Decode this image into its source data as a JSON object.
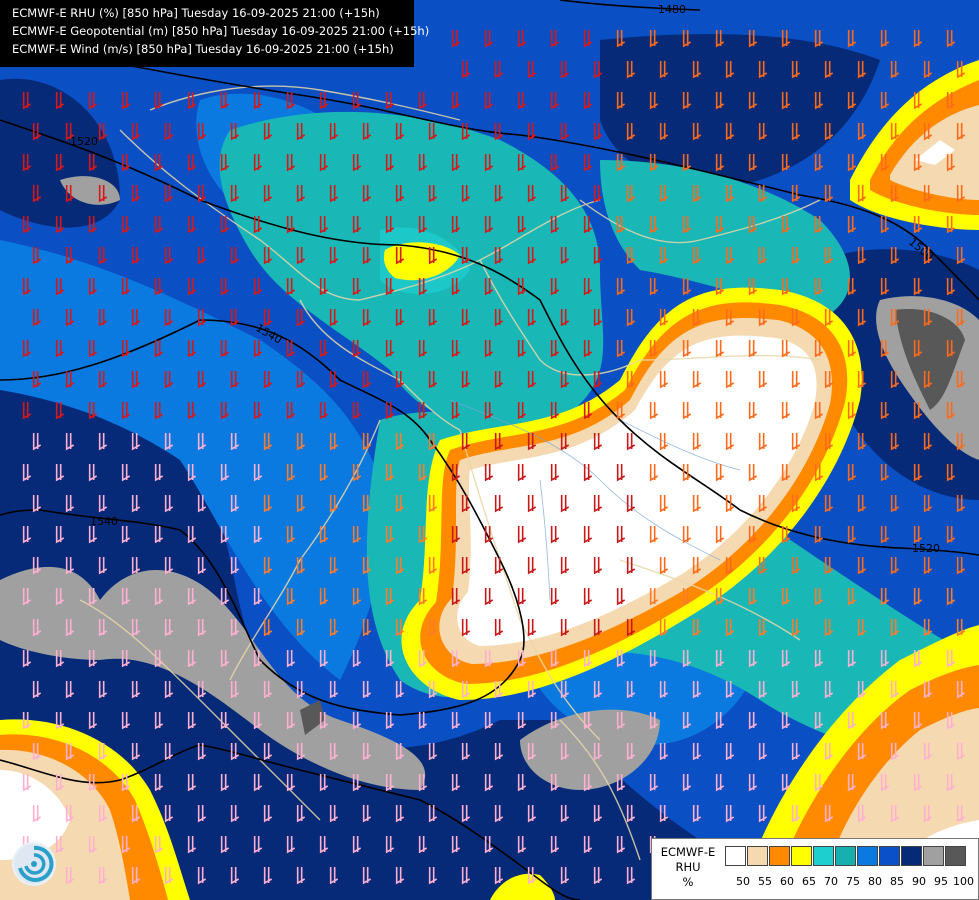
{
  "header": {
    "lines": [
      "ECMWF-E RHU (%) [850 hPa] Tuesday 16-09-2025 21:00 (+15h)",
      "ECMWF-E Geopotential (m) [850 hPa] Tuesday 16-09-2025 21:00 (+15h)",
      "ECMWF-E Wind (m/s) [850 hPa] Tuesday 16-09-2025 21:00 (+15h)"
    ]
  },
  "legend": {
    "title_lines": [
      "ECMWF-E",
      "RHU",
      "%"
    ],
    "colors": [
      "#ffffff",
      "#f5d9b0",
      "#ff8a00",
      "#ffff00",
      "#1ecfcf",
      "#1aafaf",
      "#0a7ae0",
      "#0a50c8",
      "#062a78",
      "#a0a0a0",
      "#585858"
    ],
    "labels": [
      "50",
      "55",
      "60",
      "65",
      "70",
      "75",
      "80",
      "85",
      "90",
      "95",
      "100"
    ]
  },
  "contours": [
    {
      "label": "1480"
    },
    {
      "label": "1500"
    },
    {
      "label": "1520"
    },
    {
      "label": "1520"
    },
    {
      "label": "1540"
    },
    {
      "label": "1540"
    }
  ],
  "logo": {
    "icon": "ecmwf-logo-icon"
  }
}
